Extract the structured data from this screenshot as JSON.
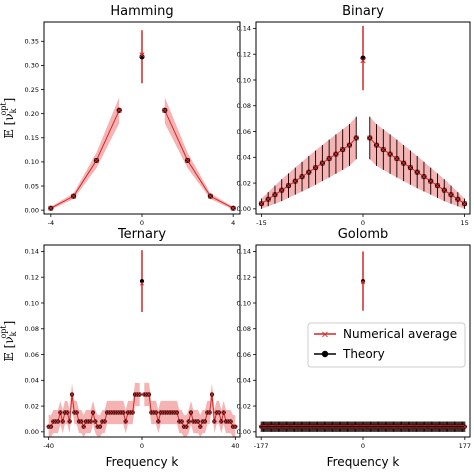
{
  "chart_data": [
    {
      "type": "scatter",
      "title": "Hamming",
      "ylabel": "𝔼 [ν_k^opt]",
      "xlabel": "",
      "xlim": [
        -4.3,
        4.3
      ],
      "ylim": [
        -0.008,
        0.39
      ],
      "xticks": [
        -4,
        0,
        4
      ],
      "yticks": [
        0.0,
        0.05,
        0.1,
        0.15,
        0.2,
        0.25,
        0.3,
        0.35
      ],
      "ytick_labels": [
        "0.00",
        "0.05",
        "0.10",
        "0.15",
        "0.20",
        "0.25",
        "0.30",
        "0.35"
      ],
      "x": [
        -4,
        -3,
        -2,
        -1,
        0,
        1,
        2,
        3,
        4
      ],
      "theory": [
        0.004,
        0.029,
        0.103,
        0.207,
        0.318,
        0.207,
        0.103,
        0.029,
        0.004
      ],
      "numerical": [
        0.004,
        0.029,
        0.103,
        0.207,
        0.322,
        0.207,
        0.103,
        0.029,
        0.004
      ],
      "band": [
        0.003,
        0.006,
        0.016,
        0.027,
        0.0,
        0.027,
        0.016,
        0.006,
        0.003
      ],
      "err": [
        0,
        0,
        0,
        0,
        0.055,
        0,
        0,
        0,
        0
      ]
    },
    {
      "type": "scatter",
      "title": "Binary",
      "ylabel": "",
      "xlabel": "",
      "xlim": [
        -15.8,
        15.8
      ],
      "ylim": [
        -0.004,
        0.145
      ],
      "xticks": [
        -15,
        0,
        15
      ],
      "yticks": [
        0.0,
        0.02,
        0.04,
        0.06,
        0.08,
        0.1,
        0.12,
        0.14
      ],
      "ytick_labels": [
        "0.00",
        "0.02",
        "0.04",
        "0.06",
        "0.08",
        "0.10",
        "0.12",
        "0.14"
      ],
      "x": [
        -15,
        -14,
        -13,
        -12,
        -11,
        -10,
        -9,
        -8,
        -7,
        -6,
        -5,
        -4,
        -3,
        -2,
        -1,
        0,
        1,
        2,
        3,
        4,
        5,
        6,
        7,
        8,
        9,
        10,
        11,
        12,
        13,
        14,
        15
      ],
      "theory": [
        0.004,
        0.0075,
        0.011,
        0.0145,
        0.018,
        0.0215,
        0.025,
        0.0285,
        0.032,
        0.0355,
        0.039,
        0.0425,
        0.046,
        0.0495,
        0.055,
        0.117,
        0.055,
        0.0495,
        0.046,
        0.0425,
        0.039,
        0.0355,
        0.032,
        0.0285,
        0.025,
        0.0215,
        0.018,
        0.0145,
        0.011,
        0.0075,
        0.004
      ],
      "numerical": [
        0.004,
        0.0075,
        0.011,
        0.0145,
        0.018,
        0.0215,
        0.025,
        0.0285,
        0.032,
        0.0355,
        0.039,
        0.0425,
        0.046,
        0.0495,
        0.055,
        0.115,
        0.055,
        0.0495,
        0.046,
        0.0425,
        0.039,
        0.0355,
        0.032,
        0.0285,
        0.025,
        0.0215,
        0.018,
        0.0145,
        0.011,
        0.0075,
        0.004
      ],
      "band": [
        0.004,
        0.0055,
        0.007,
        0.0085,
        0.0095,
        0.0105,
        0.0115,
        0.0125,
        0.0133,
        0.014,
        0.0147,
        0.0153,
        0.0158,
        0.0162,
        0.0165,
        0.0,
        0.0165,
        0.0162,
        0.0158,
        0.0153,
        0.0147,
        0.014,
        0.0133,
        0.0125,
        0.0115,
        0.0105,
        0.0095,
        0.0085,
        0.007,
        0.0055,
        0.004
      ],
      "err": [
        0.004,
        0.0055,
        0.007,
        0.0085,
        0.0095,
        0.0105,
        0.0115,
        0.0125,
        0.0133,
        0.014,
        0.0147,
        0.0153,
        0.0158,
        0.0162,
        0.0165,
        0.025,
        0.0165,
        0.0162,
        0.0158,
        0.0153,
        0.0147,
        0.014,
        0.0133,
        0.0125,
        0.0115,
        0.0105,
        0.0095,
        0.0085,
        0.007,
        0.0055,
        0.004
      ]
    },
    {
      "type": "scatter",
      "title": "Ternary",
      "ylabel": "𝔼 [ν_k^opt]",
      "xlabel": "Frequency k",
      "xlim": [
        -42,
        42
      ],
      "ylim": [
        -0.004,
        0.145
      ],
      "xticks": [
        -40,
        0,
        40
      ],
      "yticks": [
        0.0,
        0.02,
        0.04,
        0.06,
        0.08,
        0.1,
        0.12,
        0.14
      ],
      "ytick_labels": [
        "0.00",
        "0.02",
        "0.04",
        "0.06",
        "0.08",
        "0.10",
        "0.12",
        "0.14"
      ],
      "x": [
        -40,
        -39,
        -38,
        -37,
        -36,
        -35,
        -34,
        -33,
        -32,
        -31,
        -30,
        -29,
        -28,
        -27,
        -26,
        -25,
        -24,
        -23,
        -22,
        -21,
        -20,
        -19,
        -18,
        -17,
        -16,
        -15,
        -14,
        -13,
        -12,
        -11,
        -10,
        -9,
        -8,
        -7,
        -6,
        -5,
        -4,
        -3,
        -2,
        -1,
        0,
        1,
        2,
        3,
        4,
        5,
        6,
        7,
        8,
        9,
        10,
        11,
        12,
        13,
        14,
        15,
        16,
        17,
        18,
        19,
        20,
        21,
        22,
        23,
        24,
        25,
        26,
        27,
        28,
        29,
        30,
        31,
        32,
        33,
        34,
        35,
        36,
        37,
        38,
        39,
        40
      ],
      "theory": [
        0.004,
        0.004,
        0.008,
        0.008,
        0.008,
        0.015,
        0.008,
        0.015,
        0.015,
        0.008,
        0.029,
        0.015,
        0.015,
        0.008,
        0.008,
        0.004,
        0.008,
        0.008,
        0.008,
        0.015,
        0.008,
        0.004,
        0.004,
        0.008,
        0.008,
        0.015,
        0.015,
        0.015,
        0.015,
        0.015,
        0.015,
        0.015,
        0.015,
        0.008,
        0.015,
        0.015,
        0.015,
        0.029,
        0.029,
        0.029,
        0.117,
        0.029,
        0.029,
        0.029,
        0.015,
        0.015,
        0.015,
        0.008,
        0.015,
        0.015,
        0.015,
        0.015,
        0.015,
        0.015,
        0.015,
        0.015,
        0.008,
        0.008,
        0.004,
        0.004,
        0.008,
        0.015,
        0.008,
        0.008,
        0.008,
        0.004,
        0.008,
        0.008,
        0.015,
        0.015,
        0.029,
        0.008,
        0.015,
        0.015,
        0.008,
        0.015,
        0.008,
        0.008,
        0.008,
        0.004,
        0.004
      ],
      "numerical": [
        0.004,
        0.004,
        0.008,
        0.008,
        0.008,
        0.015,
        0.008,
        0.015,
        0.015,
        0.008,
        0.029,
        0.015,
        0.015,
        0.008,
        0.008,
        0.004,
        0.008,
        0.008,
        0.008,
        0.015,
        0.008,
        0.004,
        0.004,
        0.008,
        0.008,
        0.015,
        0.015,
        0.015,
        0.015,
        0.015,
        0.015,
        0.015,
        0.015,
        0.008,
        0.015,
        0.015,
        0.015,
        0.029,
        0.029,
        0.029,
        0.115,
        0.029,
        0.029,
        0.029,
        0.015,
        0.015,
        0.015,
        0.008,
        0.015,
        0.015,
        0.015,
        0.015,
        0.015,
        0.015,
        0.015,
        0.015,
        0.008,
        0.008,
        0.004,
        0.004,
        0.008,
        0.015,
        0.008,
        0.008,
        0.008,
        0.004,
        0.008,
        0.008,
        0.015,
        0.015,
        0.029,
        0.008,
        0.015,
        0.015,
        0.008,
        0.015,
        0.008,
        0.008,
        0.008,
        0.004,
        0.004
      ],
      "band_half_width": 0.009,
      "center_err": 0.024
    },
    {
      "type": "scatter",
      "title": "Golomb",
      "ylabel": "",
      "xlabel": "Frequency k",
      "xlim": [
        -186,
        186
      ],
      "ylim": [
        -0.004,
        0.145
      ],
      "xticks": [
        -177,
        0,
        177
      ],
      "yticks": [
        0.0,
        0.02,
        0.04,
        0.06,
        0.08,
        0.1,
        0.12,
        0.14
      ],
      "ytick_labels": [
        "0.00",
        "0.02",
        "0.04",
        "0.06",
        "0.08",
        "0.10",
        "0.12",
        "0.14"
      ],
      "x_start": -177,
      "x_end": 177,
      "x_step": 2,
      "baseline": 0.004,
      "baseline_err": 0.004,
      "center_theory": 0.117,
      "center_numerical": 0.116,
      "center_err": 0.023
    }
  ],
  "legend": {
    "numerical_label": "Numerical average",
    "theory_label": "Theory",
    "numerical_color": "#d62728",
    "theory_color": "#000000"
  },
  "colors": {
    "band": "#f4a6a6",
    "numerical": "#d62728",
    "theory": "#000000"
  }
}
